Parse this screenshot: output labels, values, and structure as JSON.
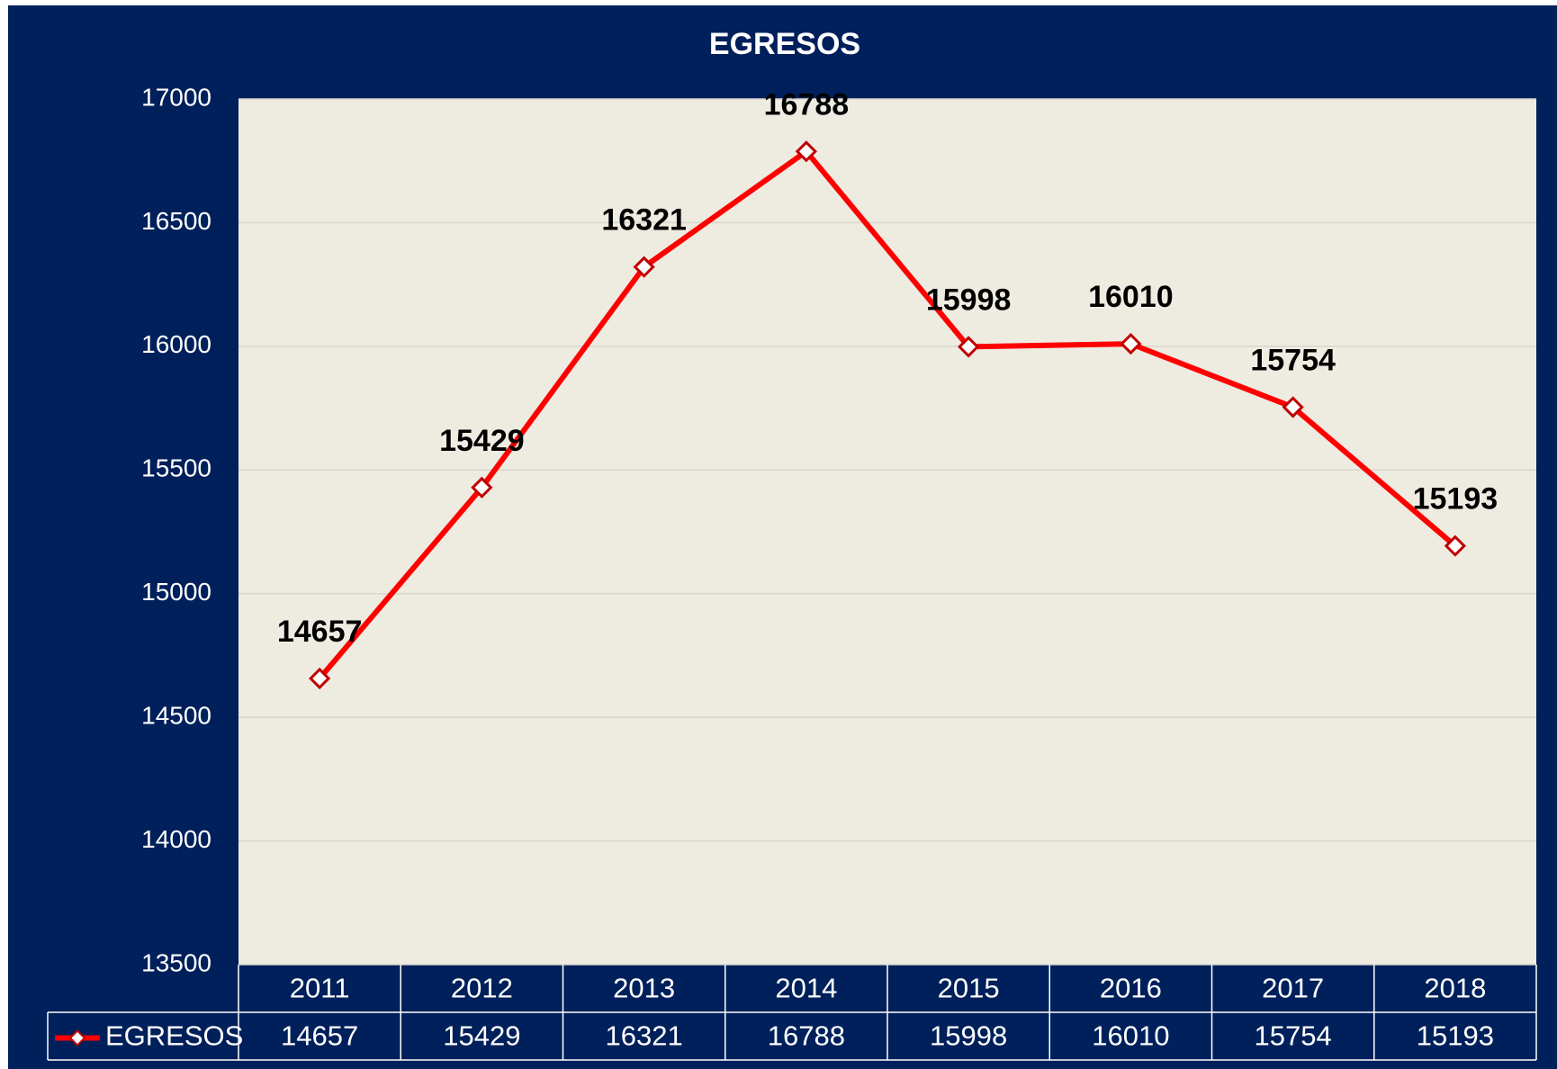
{
  "chart_data": {
    "type": "line",
    "title": "EGRESOS",
    "categories": [
      "2011",
      "2012",
      "2013",
      "2014",
      "2015",
      "2016",
      "2017",
      "2018"
    ],
    "series": [
      {
        "name": "EGRESOS",
        "color": "#ff0000",
        "values": [
          14657,
          15429,
          16321,
          16788,
          15998,
          16010,
          15754,
          15193
        ]
      }
    ],
    "ylim": [
      13500,
      17000
    ],
    "yticks": [
      13500,
      14000,
      14500,
      15000,
      15500,
      16000,
      16500,
      17000
    ],
    "grid": true,
    "data_labels": true,
    "data_table": true
  }
}
